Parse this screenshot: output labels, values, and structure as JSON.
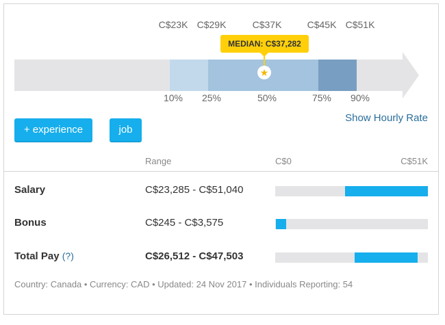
{
  "percentile_chart": {
    "value_labels": [
      "C$23K",
      "C$29K",
      "C$37K",
      "C$45K",
      "C$51K"
    ],
    "percentile_labels": [
      "10%",
      "25%",
      "50%",
      "75%",
      "90%"
    ],
    "median_label": "MEDIAN: C$37,282",
    "median_icon": "star-icon",
    "colors": {
      "p10_25": "#c2d9ec",
      "p25_75": "#a3c3de",
      "p75_90": "#789fc1",
      "median_tag": "#ffd00a"
    }
  },
  "filters": {
    "experience_label": "+ experience",
    "job_label": "job"
  },
  "hourly_link": "Show Hourly Rate",
  "table": {
    "headers": {
      "range": "Range",
      "min": "C$0",
      "max": "C$51K"
    },
    "scale_max": 51000,
    "rows": [
      {
        "label": "Salary",
        "range": "C$23,285 - C$51,040",
        "min": 23285,
        "max": 51040
      },
      {
        "label": "Bonus",
        "range": "C$245 - C$3,575",
        "min": 245,
        "max": 3575
      },
      {
        "label": "Total Pay",
        "help": "(?)",
        "range": "C$26,512 - C$47,503",
        "min": 26512,
        "max": 47503
      }
    ],
    "bar_color": "#16aeec"
  },
  "footer": "Country: Canada • Currency: CAD • Updated: 24 Nov 2017 • Individuals Reporting: 54"
}
